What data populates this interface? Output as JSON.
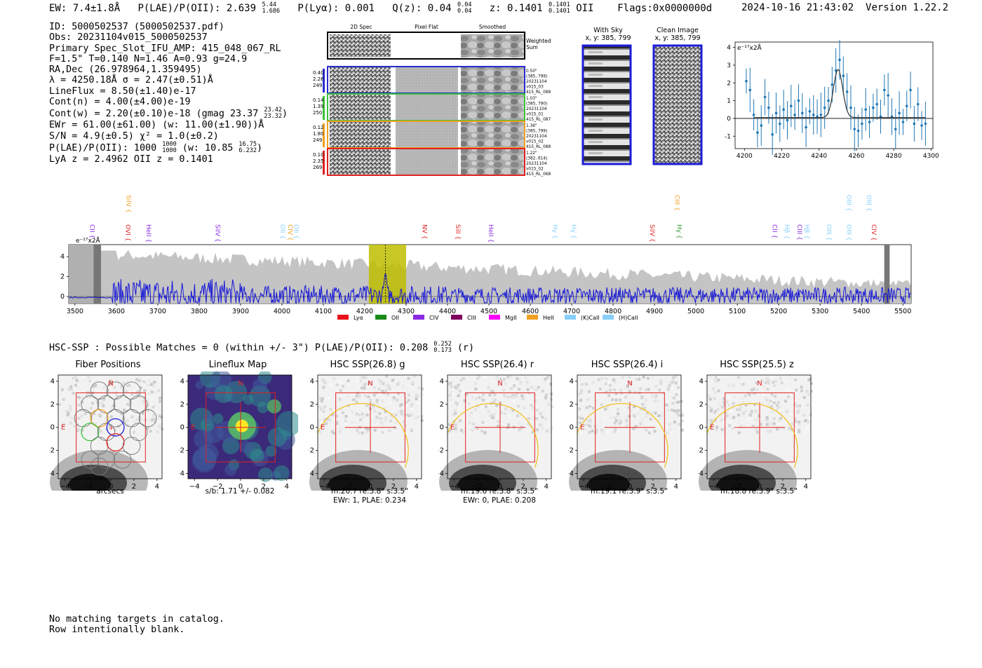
{
  "header": {
    "ew": "EW: 7.4±1.8Å",
    "plae_label": "P(LAE)/P(OII): 2.639",
    "plae_hi": "5.44",
    "plae_lo": "1.686",
    "plya": "P(Lyα): 0.001",
    "qz_label": "Q(z): 0.04",
    "qz_hi": "0.04",
    "qz_lo": "0.04",
    "z_label": "z: 0.1401",
    "z_hi": "0.1401",
    "z_lo": "0.1401",
    "z_line": "OII",
    "flags": "Flags:0x0000000d",
    "datetime": "2024-10-16 21:43:02",
    "version": "Version 1.22.2"
  },
  "info": {
    "id": "ID: 5000502537 (5000502537.pdf)",
    "obs": "Obs: 20231104v015_5000502537",
    "primary": "Primary Spec_Slot_IFU_AMP: 415_048_067_RL",
    "fiber": "F=1.5\"  T=0.140  N=1.46  A=0.93  g=24.9",
    "radec": "RA,Dec (26.978964,1.359495)",
    "lambda": "λ = 4250.18Å  σ = 2.47(±0.51)Å",
    "lineflux": "LineFlux = 8.50(±1.40)e-17",
    "contn": "Cont(n) = 4.00(±4.00)e-19",
    "contw": "Cont(w) = 2.20(±0.10)e-18 (gmag 23.37",
    "contw_hi": "23.42",
    "contw_lo": "23.32",
    "ewr": "EWr = 61.00(±61.00) (w: 11.00(±1.90))Å",
    "sn": "S/N = 4.9(±0.5)  χ² = 1.0(±0.2)",
    "plae": "P(LAE)/P(OII): 1000",
    "plae_frac_hi": "1000",
    "plae_frac_lo": "1000",
    "plae_w": "(w: 10.85",
    "plae_w_hi": "16.75",
    "plae_w_lo": "6.232",
    "redshifts": "LyA z = 2.4962  OII z = 0.1401"
  },
  "cutouts": {
    "col_headers": [
      "2D Spec",
      "Pixel Flat",
      "Smoothed"
    ],
    "weighted_sum": [
      "Weighted",
      "Sum"
    ],
    "rows": [
      {
        "color": "#2a2ad0",
        "left": [
          "0.40",
          "2.26",
          "249"
        ],
        "right": [
          "0.50\"",
          "(385, 799)",
          "20231104",
          "v015_03",
          "415_RL_088"
        ]
      },
      {
        "color": "#3ac23a",
        "left": [
          "0.14",
          "1.39",
          "250"
        ],
        "right": [
          "1.03\"",
          "(385, 790)",
          "20231104",
          "v015_01",
          "415_RL_087"
        ]
      },
      {
        "color": "#f0a020",
        "left": [
          "0.12",
          "1.80",
          "249"
        ],
        "right": [
          "1.36\"",
          "(385, 799)",
          "20231104",
          "v015_02",
          "415_RL_088"
        ]
      },
      {
        "color": "#e02020",
        "left": [
          "0.10",
          "2.35",
          "269"
        ],
        "right": [
          "1.22\"",
          "(382, 614)",
          "20231104",
          "v015_02",
          "415_RL_068"
        ]
      }
    ],
    "with_sky": [
      "With Sky",
      "x, y: 385, 799"
    ],
    "clean": [
      "Clean Image",
      "x, y: 385, 799"
    ]
  },
  "zoom_chart": {
    "type": "scatter",
    "unit_label": "e⁻¹⁷x2Å",
    "xlim": [
      4195,
      4301
    ],
    "ylim": [
      -1.7,
      4.3
    ],
    "x_ticks": [
      4200,
      4220,
      4240,
      4260,
      4280,
      4300
    ],
    "y_ticks": [
      -1,
      0,
      1,
      2,
      3,
      4
    ],
    "points": [
      [
        4201,
        2.1
      ],
      [
        4203,
        1.6
      ],
      [
        4205,
        0.2
      ],
      [
        4207,
        -0.8
      ],
      [
        4209,
        -0.4
      ],
      [
        4211,
        1.2
      ],
      [
        4213,
        0.6
      ],
      [
        4215,
        -0.9
      ],
      [
        4217,
        0.3
      ],
      [
        4219,
        -0.3
      ],
      [
        4221,
        0.5
      ],
      [
        4223,
        -0.1
      ],
      [
        4225,
        0.7
      ],
      [
        4227,
        0.2
      ],
      [
        4229,
        1.0
      ],
      [
        4231,
        0.3
      ],
      [
        4233,
        -0.5
      ],
      [
        4235,
        0.4
      ],
      [
        4237,
        0.2
      ],
      [
        4239,
        0.1
      ],
      [
        4241,
        0.2
      ],
      [
        4243,
        0.6
      ],
      [
        4245,
        1.0
      ],
      [
        4247,
        1.9
      ],
      [
        4249,
        2.7
      ],
      [
        4251,
        3.3
      ],
      [
        4253,
        2.4
      ],
      [
        4255,
        1.5
      ],
      [
        4257,
        0.6
      ],
      [
        4259,
        -0.6
      ],
      [
        4261,
        -0.7
      ],
      [
        4263,
        -0.3
      ],
      [
        4265,
        0.5
      ],
      [
        4267,
        -0.2
      ],
      [
        4269,
        0.6
      ],
      [
        4271,
        0.8
      ],
      [
        4273,
        0.1
      ],
      [
        4275,
        1.6
      ],
      [
        4277,
        1.3
      ],
      [
        4279,
        0.1
      ],
      [
        4281,
        -0.6
      ],
      [
        4283,
        0.3
      ],
      [
        4285,
        -0.2
      ],
      [
        4287,
        0.7
      ],
      [
        4289,
        1.6
      ],
      [
        4291,
        -0.3
      ],
      [
        4293,
        0.8
      ],
      [
        4295,
        -0.4
      ],
      [
        4297,
        -0.3
      ]
    ],
    "fit": {
      "center": 4250.18,
      "sigma": 2.47,
      "amp": 2.7,
      "base": 0.05
    }
  },
  "spectrum": {
    "type": "line",
    "unit_label": "e⁻¹⁷x2Å",
    "xlim": [
      3485,
      5520
    ],
    "ylim": [
      -0.7,
      5.2
    ],
    "x_ticks": [
      3500,
      3600,
      3700,
      3800,
      3900,
      4000,
      4100,
      4200,
      4300,
      4400,
      4500,
      4600,
      4700,
      4800,
      4900,
      5000,
      5100,
      5200,
      5300,
      5400,
      5500
    ],
    "y_ticks": [
      0,
      2,
      4
    ],
    "highlight": [
      4210,
      4300
    ],
    "line_center": 4250,
    "emission_lines": [
      {
        "name": "CII",
        "x": 3532,
        "color": "#8a2be2",
        "row": 2
      },
      {
        "name": "SiIV",
        "x": 3620,
        "color": "#f0a020",
        "row": 0
      },
      {
        "name": "OVI",
        "x": 3618,
        "color": "#e02020",
        "row": 1
      },
      {
        "name": "HeII",
        "x": 3668,
        "color": "#8a2be2",
        "row": 1
      },
      {
        "name": "SiIV",
        "x": 3835,
        "color": "#8a2be2",
        "row": 1
      },
      {
        "name": "OII",
        "x": 3992,
        "color": "#87cefa",
        "row": 1
      },
      {
        "name": "CIV",
        "x": 4010,
        "color": "#f0a020",
        "row": 1
      },
      {
        "name": "OII",
        "x": 4025,
        "color": "#87cefa",
        "row": 1
      },
      {
        "name": "NV",
        "x": 4335,
        "color": "#e02020",
        "row": 1
      },
      {
        "name": "SiII",
        "x": 4415,
        "color": "#e02020",
        "row": 1
      },
      {
        "name": "HeII",
        "x": 4495,
        "color": "#8a2be2",
        "row": 1
      },
      {
        "name": "Hγ",
        "x": 4650,
        "color": "#87cefa",
        "row": 2
      },
      {
        "name": "Hγ",
        "x": 4695,
        "color": "#87cefa",
        "row": 2
      },
      {
        "name": "SiIV",
        "x": 4885,
        "color": "#e02020",
        "row": 1
      },
      {
        "name": "CIII",
        "x": 4945,
        "color": "#f0a020",
        "row": 0
      },
      {
        "name": "Hγ",
        "x": 4950,
        "color": "#2a9a2a",
        "row": 2
      },
      {
        "name": "CII",
        "x": 5180,
        "color": "#8a2be2",
        "row": 2
      },
      {
        "name": "Hβ",
        "x": 5210,
        "color": "#87cefa",
        "row": 2
      },
      {
        "name": "CIII",
        "x": 5240,
        "color": "#8a2be2",
        "row": 2
      },
      {
        "name": "Hβ",
        "x": 5258,
        "color": "#87cefa",
        "row": 2
      },
      {
        "name": "OIII",
        "x": 5312,
        "color": "#87cefa",
        "row": 2
      },
      {
        "name": "OIII",
        "x": 5360,
        "color": "#87cefa",
        "row": 0
      },
      {
        "name": "OIII",
        "x": 5360,
        "color": "#87cefa",
        "row": 2
      },
      {
        "name": "OIII",
        "x": 5408,
        "color": "#87cefa",
        "row": 0
      },
      {
        "name": "CIV",
        "x": 5420,
        "color": "#e02020",
        "row": 2
      }
    ],
    "legend": [
      {
        "label": "Lyα",
        "color": "#e8101a"
      },
      {
        "label": "OII",
        "color": "#1a8a1a"
      },
      {
        "label": "CIV",
        "color": "#8a2be2"
      },
      {
        "label": "CIII",
        "color": "#800060"
      },
      {
        "label": "MgII",
        "color": "#ff00ff"
      },
      {
        "label": "HeII",
        "color": "#f0a020"
      },
      {
        "label": "(K)CaII",
        "color": "#87cefa"
      },
      {
        "label": "(H)CaII",
        "color": "#87cefa"
      }
    ]
  },
  "hsc": {
    "summary": "HSC-SSP : Possible Matches = 0 (within +/- 3\")  P(LAE)/P(OII): 0.208",
    "summary_hi": "0.252",
    "summary_lo": "0.173",
    "summary_band": "(r)",
    "panels": [
      {
        "title": "Fiber Positions",
        "captions": [
          "arcsecs"
        ],
        "kind": "fiber"
      },
      {
        "title": "Lineflux Map",
        "captions": [
          "s/b: 1.71 +/- 0.082"
        ],
        "kind": "lineflux"
      },
      {
        "title": "HSC SSP(26.8) g",
        "captions": [
          "m:20.7  re:3.8\"  s:3.5\"",
          "EWr: 1, PLAE: 0.234"
        ],
        "kind": "hsc"
      },
      {
        "title": "HSC SSP(26.4) r",
        "captions": [
          "m:19.6  re:3.8\"  s:3.5\"",
          "EWr: 0, PLAE: 0.208"
        ],
        "kind": "hsc"
      },
      {
        "title": "HSC SSP(26.4) i",
        "captions": [
          "m:19.1  re:3.9\"  s:3.5\""
        ],
        "kind": "hsc"
      },
      {
        "title": "HSC SSP(25.5) z",
        "captions": [
          "m:18.8  re:3.9\"  s:3.5\""
        ],
        "kind": "hsc"
      }
    ],
    "ticks": [
      "−4",
      "−2",
      "0",
      "2",
      "4"
    ],
    "compass_n": "N",
    "compass_e": "E"
  },
  "footer": {
    "line1": "No matching targets in catalog.",
    "line2": "Row intentionally blank."
  },
  "colors": {
    "spectrum": "#1515d8",
    "grey_fill": "#c4c4c4",
    "highlight": "#bdbd00",
    "box_red": "#e02020",
    "ellipse": "#f0c020"
  }
}
